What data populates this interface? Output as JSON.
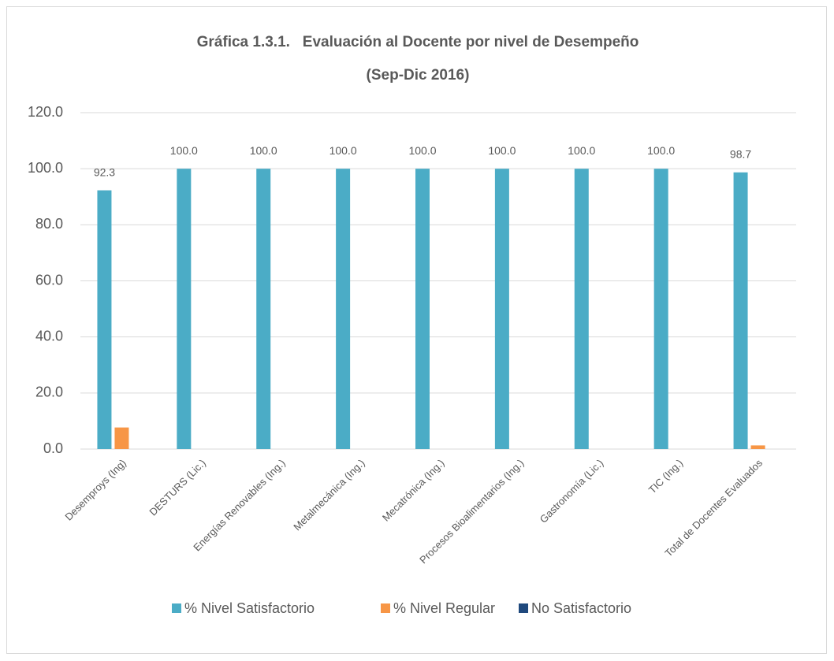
{
  "chart_data": {
    "type": "bar",
    "title": "Gráfica 1.3.1.   Evaluación al Docente por nivel de Desempeño",
    "subtitle": "(Sep-Dic 2016)",
    "categories": [
      "Desemproys (Ing)",
      "DESTURS  (Lic.)",
      "Energías Renovables (Ing.)",
      "Metalmecánica (Ing.)",
      "Mecatrónica (Ing.)",
      "Procesos Bioalimentarios (Ing.)",
      "Gastronomía (Lic.)",
      "TIC (Ing.)",
      "Total de Docentes Evaluados"
    ],
    "series": [
      {
        "name": "% Nivel Satisfactorio",
        "color": "#4bacc6",
        "values": [
          92.3,
          100,
          100,
          100,
          100,
          100,
          100,
          100,
          98.7
        ],
        "value_labels": [
          "92.3",
          "100.0",
          "100.0",
          "100.0",
          "100.0",
          "100.0",
          "100.0",
          "100.0",
          "98.7"
        ]
      },
      {
        "name": "% Nivel Regular",
        "color": "#f79646",
        "values": [
          7.7,
          0,
          0,
          0,
          0,
          0,
          0,
          0,
          1.3
        ]
      },
      {
        "name": "No Satisfactorio",
        "color": "#1f497d",
        "values": [
          0,
          0,
          0,
          0,
          0,
          0,
          0,
          0,
          0
        ]
      }
    ],
    "ylim": [
      0,
      120
    ],
    "yticks": [
      {
        "value": 0,
        "label": "0.0"
      },
      {
        "value": 20,
        "label": "20.0"
      },
      {
        "value": 40,
        "label": "40.0"
      },
      {
        "value": 60,
        "label": "60.0"
      },
      {
        "value": 80,
        "label": "80.0"
      },
      {
        "value": 100,
        "label": "100.0"
      },
      {
        "value": 120,
        "label": "120.0"
      }
    ],
    "grid": true,
    "legend": "bottom"
  }
}
